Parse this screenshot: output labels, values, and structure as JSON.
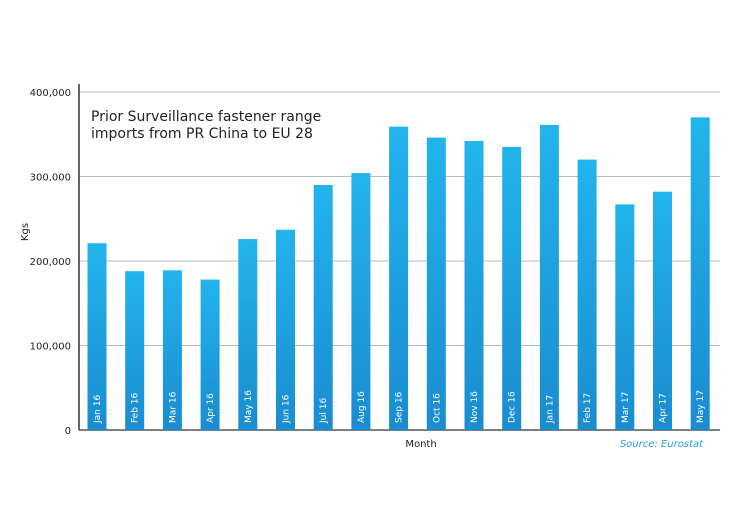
{
  "chart_data": {
    "type": "bar",
    "title": [
      "Prior Surveillance fastener range",
      "imports from PR China to EU 28"
    ],
    "xlabel": "Month",
    "ylabel": "Kgs",
    "source": "Source: Eurostat",
    "ylim": [
      0,
      400000
    ],
    "yticks": [
      0,
      100000,
      200000,
      300000,
      400000
    ],
    "ytick_labels": [
      "0",
      "100,000",
      "200,000",
      "300,000",
      "400,000"
    ],
    "grid": true,
    "categories": [
      "Jan 16",
      "Feb 16",
      "Mar 16",
      "Apr 16",
      "May 16",
      "Jun 16",
      "Jul 16",
      "Aug 16",
      "Sep 16",
      "Oct 16",
      "Nov 16",
      "Dec 16",
      "Jan 17",
      "Feb 17",
      "Mar 17",
      "Apr 17",
      "May 17"
    ],
    "values": [
      221000,
      188000,
      189000,
      178000,
      226000,
      237000,
      290000,
      304000,
      359000,
      346000,
      342000,
      335000,
      361000,
      320000,
      267000,
      282000,
      370000
    ],
    "colors": {
      "bar_top": "#22b4ec",
      "bar_bottom": "#1a8cd0",
      "grid": "#bbbbbb",
      "axis": "#333333",
      "source": "#2a9fd8"
    }
  }
}
